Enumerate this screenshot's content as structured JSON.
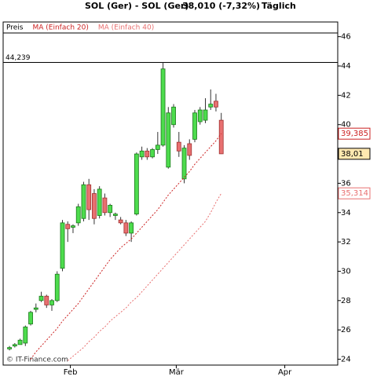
{
  "chart_data": {
    "type": "candlestick",
    "title": "SOL (Ger) - SOL (Ger)",
    "subtitle": "38,010 (-7,32%)",
    "period": "Täglich",
    "watermark": "© IT-Finance.com",
    "x": [
      0,
      1,
      2,
      3,
      4,
      5,
      6,
      7,
      8,
      9,
      10,
      11,
      12,
      13,
      14,
      15,
      16,
      17,
      18,
      19,
      20,
      21,
      22,
      23,
      24,
      25,
      26,
      27,
      28,
      29,
      30,
      31,
      32,
      33,
      34,
      35,
      36,
      37,
      38,
      39,
      40
    ],
    "xlim": [
      -1.2,
      62
    ],
    "xticks": [
      {
        "value": 11.5,
        "label": "Feb"
      },
      {
        "value": 31.5,
        "label": "Mär"
      },
      {
        "value": 52,
        "label": "Apr"
      }
    ],
    "ylim": [
      23.6,
      47.0
    ],
    "yticks": [
      24,
      26,
      28,
      30,
      32,
      34,
      36,
      38,
      40,
      42,
      44,
      46
    ],
    "high_line": {
      "value": 44.239,
      "label": "44,239"
    },
    "series": [
      {
        "name": "Preis",
        "up_color": "#4ddc4d",
        "down_color": "#e87070",
        "last_label": "38,01",
        "open": [
          24.7,
          24.9,
          25.0,
          25.1,
          26.4,
          27.4,
          28.0,
          28.3,
          27.7,
          28.0,
          30.2,
          33.2,
          33.0,
          33.3,
          33.6,
          35.9,
          35.3,
          33.8,
          35.0,
          34.0,
          33.8,
          33.5,
          33.3,
          32.6,
          33.9,
          37.8,
          38.2,
          37.8,
          38.3,
          38.6,
          37.1,
          40.0,
          38.8,
          36.3,
          38.7,
          39.0,
          40.2,
          40.3,
          41.2,
          41.6,
          40.3
        ],
        "high": [
          24.9,
          25.1,
          25.4,
          26.3,
          27.3,
          27.8,
          28.6,
          28.4,
          28.1,
          30.0,
          33.5,
          33.4,
          33.2,
          34.6,
          36.1,
          36.3,
          35.6,
          35.8,
          35.3,
          34.6,
          34.0,
          33.7,
          33.5,
          33.4,
          38.1,
          38.5,
          38.4,
          38.4,
          39.5,
          44.239,
          41.2,
          41.4,
          39.5,
          38.6,
          39.0,
          41.0,
          41.2,
          41.8,
          42.4,
          42.1,
          40.8
        ],
        "low": [
          24.6,
          24.8,
          25.0,
          24.9,
          26.3,
          27.2,
          27.9,
          27.5,
          27.3,
          27.9,
          30.0,
          32.0,
          32.6,
          33.1,
          33.4,
          33.5,
          33.2,
          33.6,
          33.8,
          33.7,
          33.5,
          33.2,
          32.4,
          32.0,
          33.8,
          37.6,
          37.6,
          37.7,
          38.0,
          38.5,
          37.0,
          39.8,
          37.8,
          36.0,
          37.6,
          38.8,
          40.0,
          40.1,
          41.0,
          40.9,
          38.0
        ],
        "close": [
          24.8,
          25.0,
          25.3,
          26.2,
          27.2,
          27.5,
          28.3,
          27.7,
          28.0,
          29.8,
          33.3,
          32.9,
          33.1,
          34.4,
          35.9,
          34.2,
          33.6,
          35.6,
          34.0,
          34.5,
          33.9,
          33.3,
          32.6,
          33.3,
          38.0,
          38.2,
          37.8,
          38.3,
          38.6,
          43.8,
          40.8,
          41.2,
          38.2,
          38.4,
          37.9,
          40.8,
          41.0,
          41.0,
          41.4,
          41.2,
          38.01
        ]
      },
      {
        "name": "MA (Einfach 20)",
        "color": "#cc2222",
        "last_label": "39,385",
        "values": [
          null,
          null,
          null,
          null,
          24.0,
          24.5,
          24.9,
          25.3,
          25.7,
          26.1,
          26.6,
          27.0,
          27.4,
          27.8,
          28.3,
          28.8,
          29.3,
          29.8,
          30.3,
          30.8,
          31.2,
          31.6,
          31.9,
          32.2,
          32.6,
          33.0,
          33.4,
          33.8,
          34.2,
          34.7,
          35.2,
          35.6,
          36.0,
          36.4,
          36.8,
          37.3,
          37.7,
          38.1,
          38.5,
          38.9,
          39.385
        ]
      },
      {
        "name": "MA (Einfach 40)",
        "color": "#e87070",
        "last_label": "35,314",
        "values": [
          null,
          null,
          null,
          null,
          null,
          null,
          null,
          null,
          null,
          null,
          null,
          23.9,
          24.2,
          24.5,
          24.8,
          25.2,
          25.5,
          25.9,
          26.2,
          26.6,
          26.9,
          27.2,
          27.5,
          27.9,
          28.2,
          28.6,
          29.0,
          29.4,
          29.8,
          30.2,
          30.6,
          31.0,
          31.4,
          31.8,
          32.2,
          32.6,
          33.0,
          33.4,
          34.0,
          34.7,
          35.314
        ]
      }
    ]
  }
}
